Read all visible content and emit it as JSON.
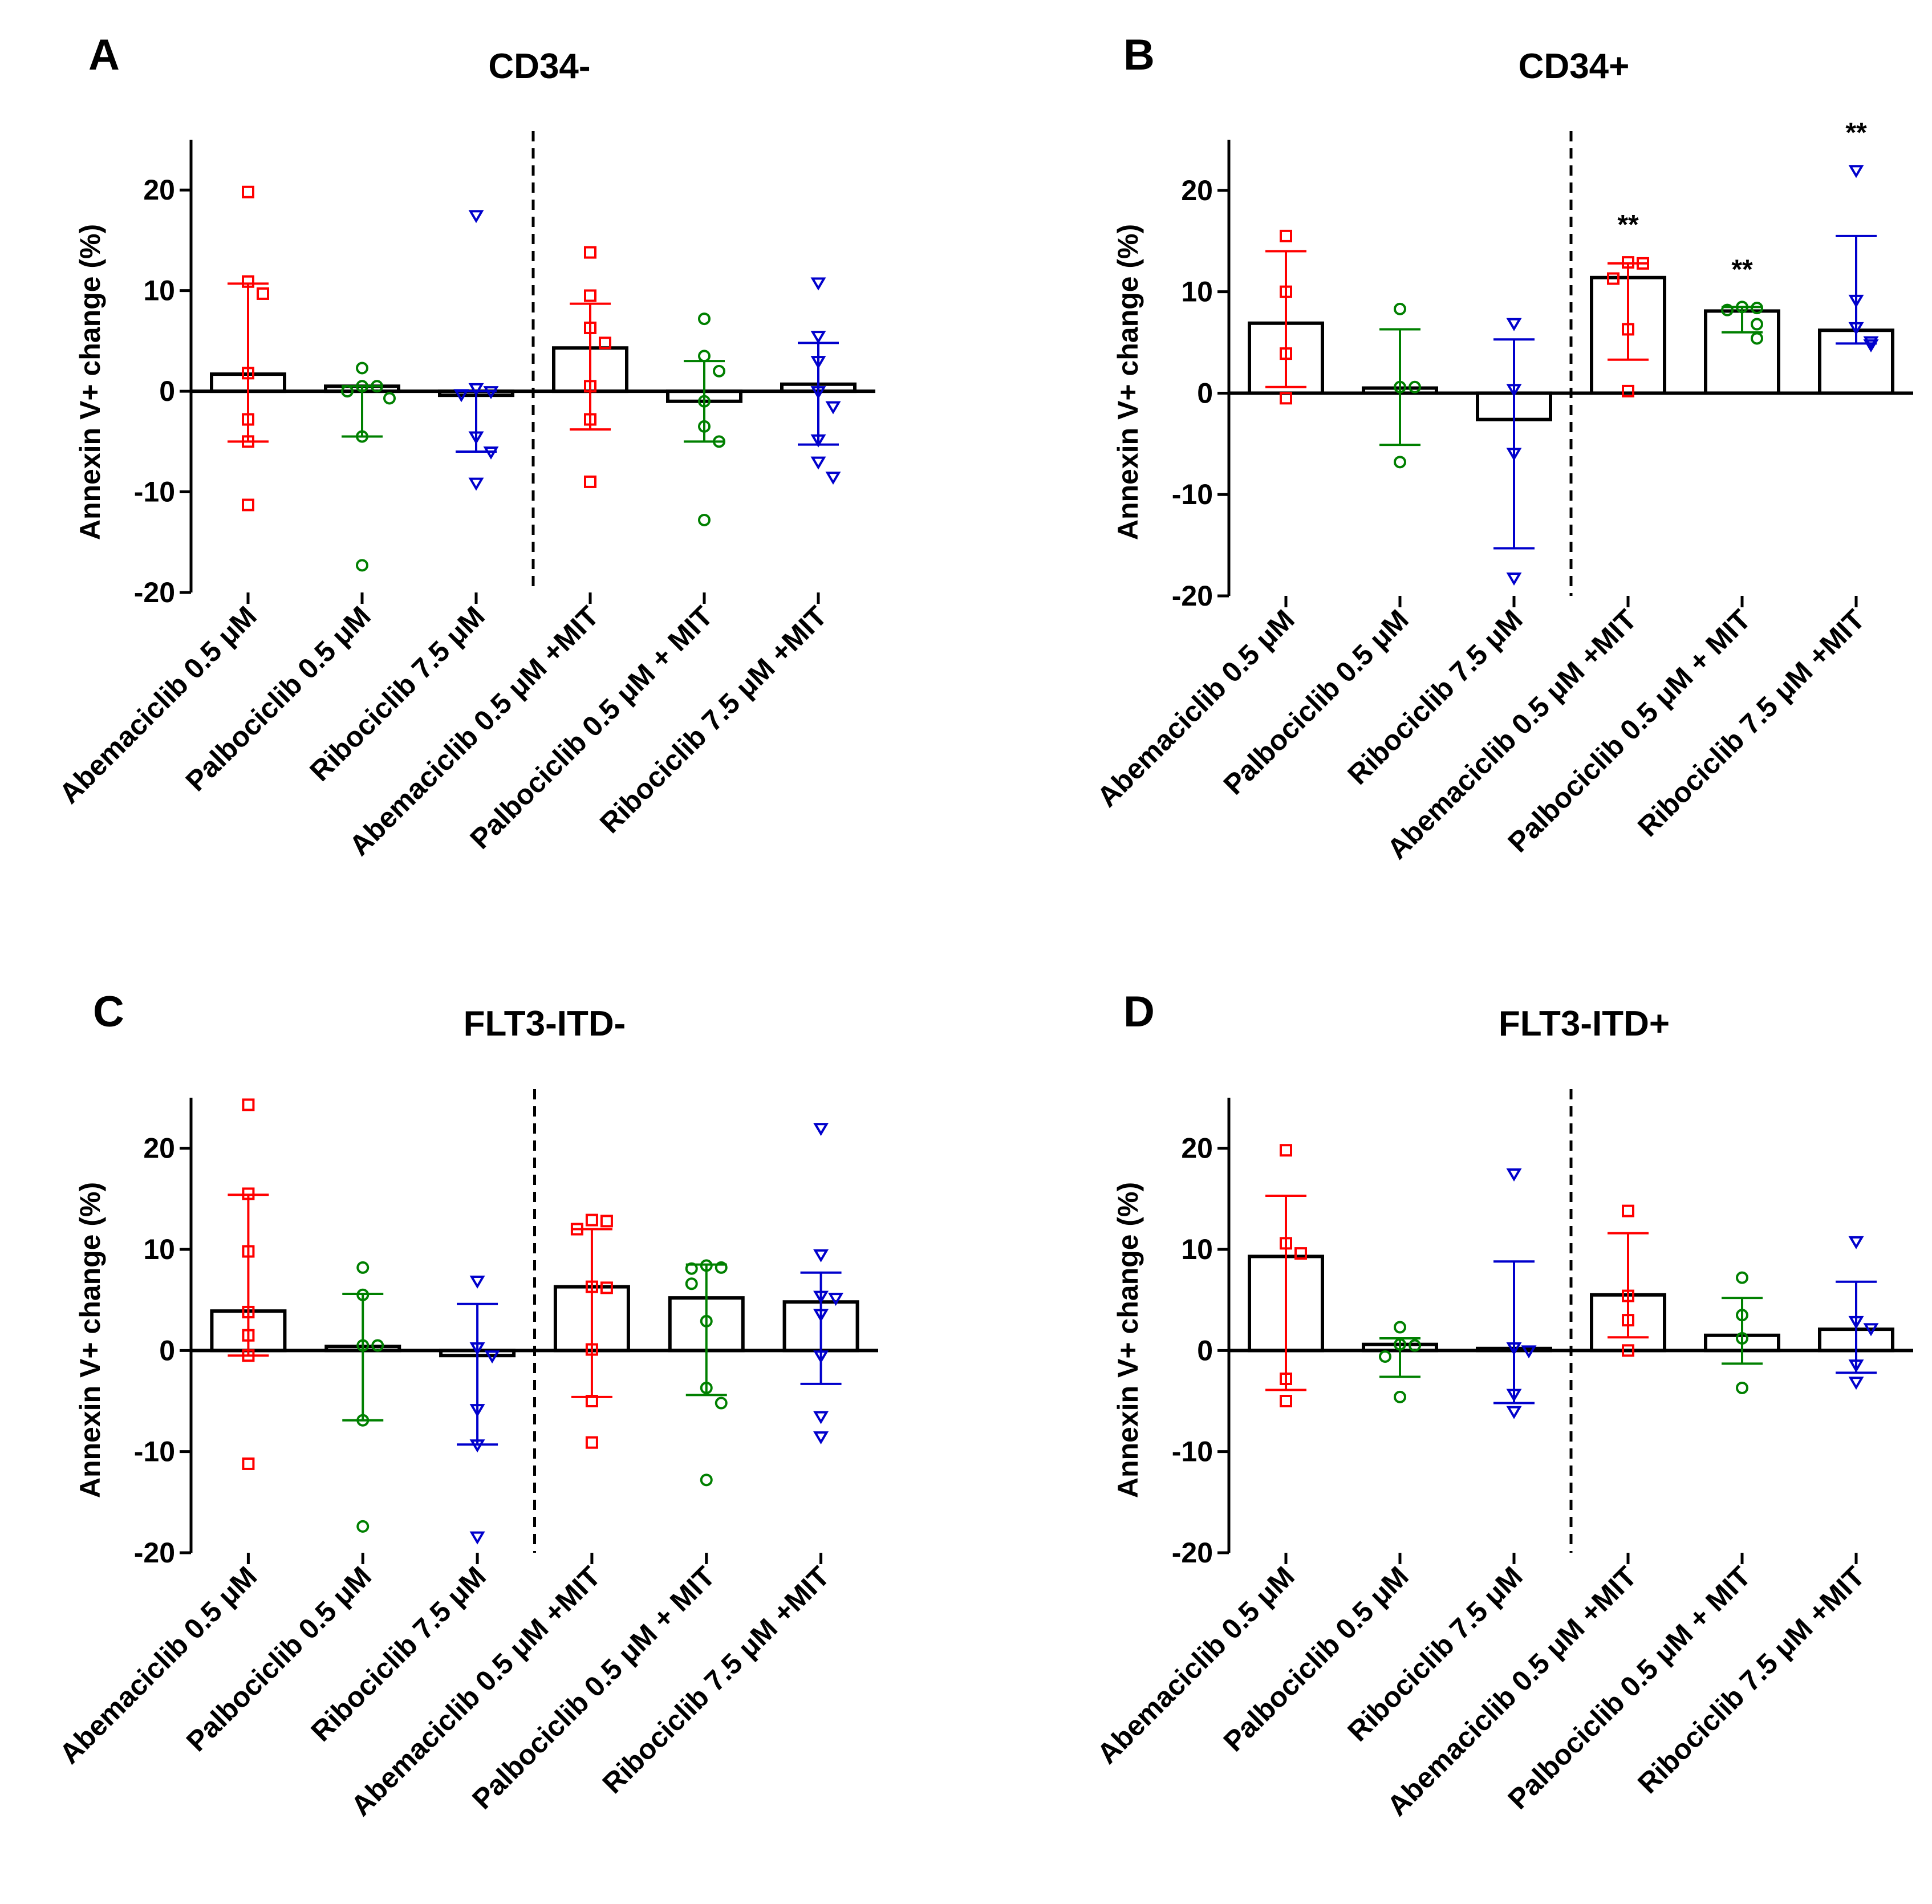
{
  "chart_data": [
    {
      "panel": "A",
      "type": "bar",
      "title": "CD34-",
      "ylabel": "Annexin V+ change (%)",
      "ylim": [
        -20,
        25
      ],
      "yticks": [
        "20",
        "10",
        "0",
        "-10",
        "-20"
      ],
      "categories": [
        "Abemaciclib 0.5 μM",
        "Palbociclib 0.5 μM",
        "Ribociclib 7.5 μM",
        "Abemaciclib 0.5 μM +MIT",
        "Palbociclib 0.5 μM + MIT",
        "Ribociclib 7.5 μM +MIT"
      ],
      "colors": [
        "#ff0000",
        "#008000",
        "#0000cc",
        "#ff0000",
        "#008000",
        "#0000cc"
      ],
      "markers": [
        "square",
        "circle",
        "triangle",
        "square",
        "circle",
        "triangle"
      ],
      "means": [
        1.7,
        0.5,
        -0.4,
        4.3,
        -1.0,
        0.7
      ],
      "sd_low": [
        -5.0,
        -4.5,
        -6.0,
        -3.8,
        -5.0,
        -5.3
      ],
      "sd_high": [
        10.7,
        0.5,
        0.0,
        8.7,
        3.0,
        4.8
      ],
      "points": [
        [
          19.8,
          10.9,
          9.7,
          1.8,
          -2.8,
          -5.0,
          -11.3
        ],
        [
          2.3,
          0.5,
          0.5,
          0.0,
          -0.7,
          -4.5,
          -17.3
        ],
        [
          17.5,
          0.3,
          0.0,
          -0.3,
          -4.5,
          -6.0,
          -9.1
        ],
        [
          13.8,
          9.5,
          6.3,
          4.8,
          0.5,
          -2.8,
          -9.0
        ],
        [
          7.2,
          3.5,
          2.0,
          -1.0,
          -3.5,
          -5.0,
          -12.8
        ],
        [
          10.8,
          5.5,
          3.0,
          0.0,
          -1.5,
          -4.8,
          -7.0,
          -8.5
        ]
      ],
      "significance": [
        "",
        "",
        "",
        "",
        "",
        ""
      ],
      "separator_after": 3
    },
    {
      "panel": "B",
      "type": "bar",
      "title": "CD34+",
      "ylabel": "Annexin V+ change (%)",
      "ylim": [
        -20,
        25
      ],
      "yticks": [
        "20",
        "10",
        "0",
        "-10",
        "-20"
      ],
      "categories": [
        "Abemaciclib 0.5 μM",
        "Palbociclib 0.5 μM",
        "Ribociclib 7.5 μM",
        "Abemaciclib 0.5 μM +MIT",
        "Palbociclib 0.5 μM + MIT",
        "Ribociclib 7.5 μM +MIT"
      ],
      "colors": [
        "#ff0000",
        "#008000",
        "#0000cc",
        "#ff0000",
        "#008000",
        "#0000cc"
      ],
      "markers": [
        "square",
        "circle",
        "triangle",
        "square",
        "circle",
        "triangle"
      ],
      "means": [
        6.9,
        0.5,
        -2.6,
        11.4,
        8.1,
        6.2
      ],
      "sd_low": [
        0.6,
        -5.1,
        -15.3,
        3.3,
        6.0,
        4.9
      ],
      "sd_high": [
        14.0,
        6.3,
        5.3,
        12.8,
        8.5,
        15.5
      ],
      "points": [
        [
          15.5,
          10.0,
          3.9,
          -0.5
        ],
        [
          8.3,
          0.6,
          0.6,
          -6.8
        ],
        [
          6.9,
          0.4,
          -5.9,
          -18.2
        ],
        [
          12.9,
          12.8,
          11.3,
          6.3,
          0.2
        ],
        [
          8.5,
          8.4,
          8.2,
          6.8,
          5.4
        ],
        [
          22.0,
          9.2,
          6.5,
          5.1,
          4.8
        ]
      ],
      "significance": [
        "",
        "",
        "",
        "**",
        "**",
        "**"
      ],
      "separator_after": 3
    },
    {
      "panel": "C",
      "type": "bar",
      "title": "FLT3-ITD-",
      "ylabel": "Annexin V+ change (%)",
      "ylim": [
        -20,
        25
      ],
      "yticks": [
        "20",
        "10",
        "0",
        "-10",
        "-20"
      ],
      "categories": [
        "Abemaciclib 0.5 μM",
        "Palbociclib 0.5 μM",
        "Ribociclib 7.5 μM",
        "Abemaciclib 0.5 μM +MIT",
        "Palbociclib 0.5 μM + MIT",
        "Ribociclib 7.5 μM +MIT"
      ],
      "colors": [
        "#ff0000",
        "#008000",
        "#0000cc",
        "#ff0000",
        "#008000",
        "#0000cc"
      ],
      "markers": [
        "square",
        "circle",
        "triangle",
        "square",
        "circle",
        "triangle"
      ],
      "means": [
        3.9,
        0.4,
        -0.5,
        6.3,
        5.2,
        4.8
      ],
      "sd_low": [
        -0.5,
        -6.9,
        -9.3,
        -4.6,
        -4.4,
        -3.3
      ],
      "sd_high": [
        15.4,
        5.6,
        4.6,
        12.0,
        8.5,
        7.7
      ],
      "points": [
        [
          24.3,
          15.5,
          9.8,
          3.8,
          1.5,
          -0.5,
          -11.2
        ],
        [
          8.2,
          5.5,
          0.5,
          0.5,
          -6.9,
          -17.4
        ],
        [
          6.9,
          0.3,
          -0.5,
          -5.8,
          -9.3,
          -18.4
        ],
        [
          12.9,
          12.8,
          12.0,
          6.3,
          6.2,
          0.1,
          -5.0,
          -9.1
        ],
        [
          8.4,
          8.2,
          8.1,
          6.6,
          2.9,
          -3.7,
          -5.2,
          -12.8
        ],
        [
          22.0,
          9.5,
          5.4,
          5.2,
          3.6,
          -0.5,
          -6.5,
          -8.5
        ]
      ],
      "significance": [
        "",
        "",
        "",
        "",
        "",
        ""
      ],
      "separator_after": 3
    },
    {
      "panel": "D",
      "type": "bar",
      "title": "FLT3-ITD+",
      "ylabel": "Annexin V+ change (%)",
      "ylim": [
        -20,
        25
      ],
      "yticks": [
        "20",
        "10",
        "0",
        "-10",
        "-20"
      ],
      "categories": [
        "Abemaciclib 0.5 μM",
        "Palbociclib 0.5 μM",
        "Ribociclib 7.5 μM",
        "Abemaciclib 0.5 μM +MIT",
        "Palbociclib 0.5 μM + MIT",
        "Ribociclib 7.5 μM +MIT"
      ],
      "colors": [
        "#ff0000",
        "#008000",
        "#0000cc",
        "#ff0000",
        "#008000",
        "#0000cc"
      ],
      "markers": [
        "square",
        "circle",
        "triangle",
        "square",
        "circle",
        "triangle"
      ],
      "means": [
        9.3,
        0.6,
        0.2,
        5.5,
        1.5,
        2.1
      ],
      "sd_low": [
        -3.9,
        -2.6,
        -5.2,
        1.3,
        -1.3,
        -2.2
      ],
      "sd_high": [
        15.3,
        1.2,
        8.8,
        11.6,
        5.2,
        6.8
      ],
      "points": [
        [
          19.8,
          10.6,
          9.6,
          -2.8,
          -5.0
        ],
        [
          2.3,
          0.6,
          0.5,
          -0.6,
          -4.6
        ],
        [
          17.5,
          0.3,
          0.0,
          -4.3,
          -6.0
        ],
        [
          13.8,
          5.4,
          3.0,
          0.0
        ],
        [
          7.2,
          3.5,
          1.2,
          -3.7
        ],
        [
          10.8,
          2.9,
          2.2,
          -1.4,
          -3.1
        ]
      ],
      "significance": [
        "",
        "",
        "",
        "",
        "",
        ""
      ],
      "separator_after": 3
    }
  ]
}
